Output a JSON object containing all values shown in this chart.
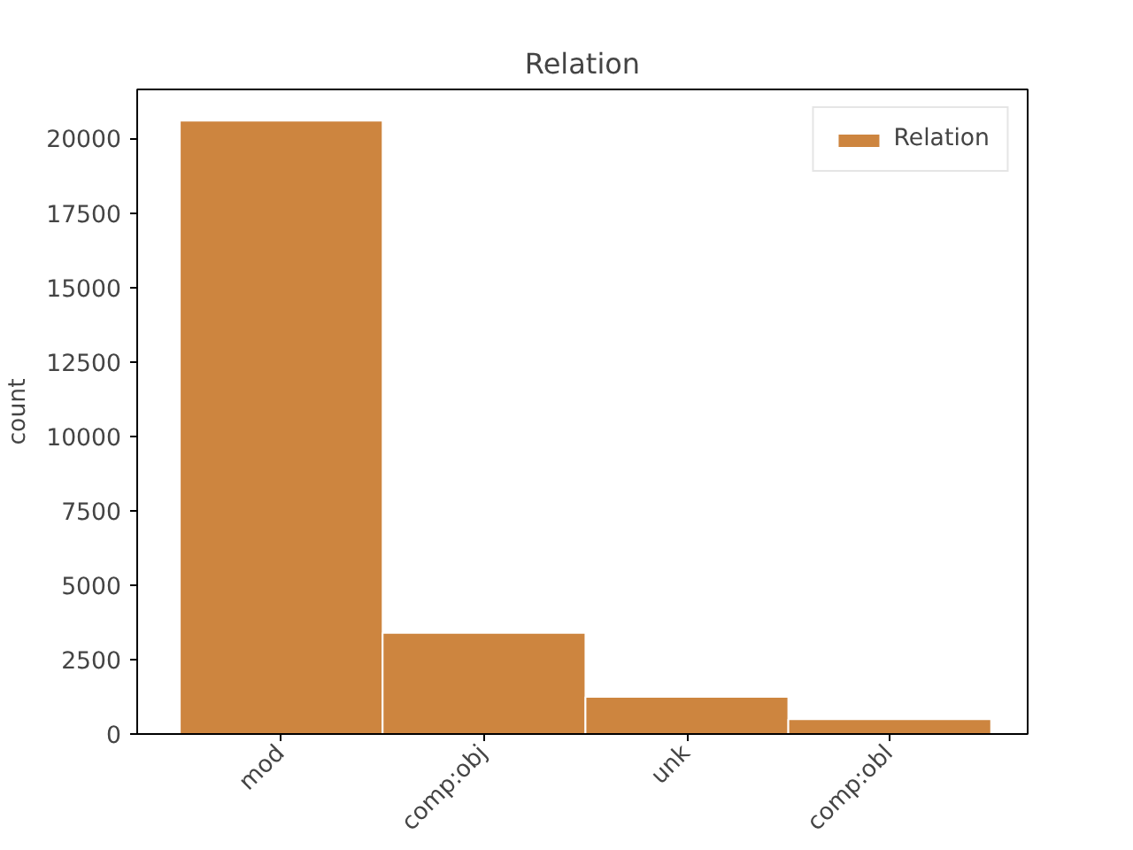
{
  "chart_data": {
    "type": "bar",
    "title": "Relation",
    "ylabel": "count",
    "categories": [
      "mod",
      "comp:obj",
      "unk",
      "comp:obl"
    ],
    "series": [
      {
        "name": "Relation",
        "color": "#cd853f",
        "values": [
          20600,
          3400,
          1250,
          500
        ]
      }
    ],
    "ylim": [
      0,
      21650
    ],
    "yticks": [
      0,
      2500,
      5000,
      7500,
      10000,
      12500,
      15000,
      17500,
      20000
    ],
    "grid": false,
    "legend": "top right"
  }
}
